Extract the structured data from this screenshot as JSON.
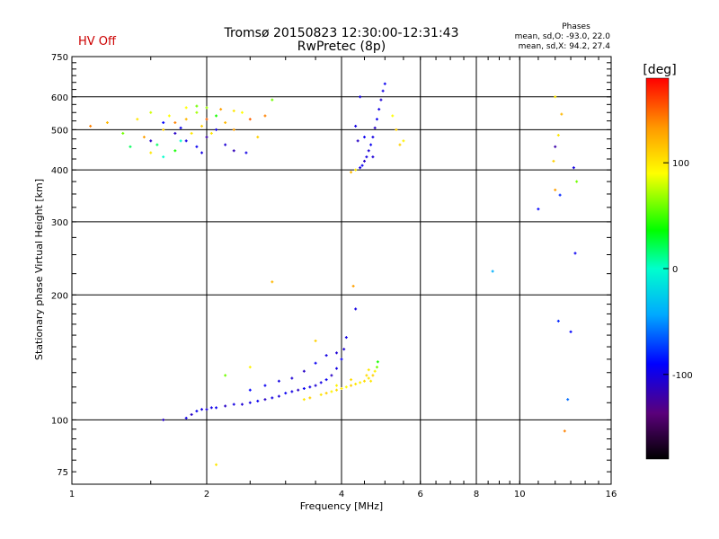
{
  "header": {
    "title_line1": "Tromsø 20150823 12:30:00-12:31:43",
    "title_line2": "RwPretec (8p)",
    "status": "HV Off",
    "status_color": "#cc0000",
    "stats_title": "Phases",
    "stats_line1": "mean, sd,O: -93.0, 22.0",
    "stats_line2": "mean, sd,X:  94.2, 27.4"
  },
  "chart_data": {
    "type": "scatter",
    "title": "Tromsø 20150823 12:30:00-12:31:43",
    "subtitle": "RwPretec (8p)",
    "xlabel": "Frequency [MHz]",
    "ylabel": "Stationary phase Virtual Height [km]",
    "xscale": "log",
    "yscale": "log",
    "xlim": [
      1,
      16
    ],
    "ylim": [
      70,
      750
    ],
    "x_ticks": [
      1,
      2,
      4,
      6,
      8,
      10,
      16
    ],
    "x_tick_labels": [
      "1",
      "2",
      "4",
      "6",
      "8",
      "10",
      "16"
    ],
    "y_ticks": [
      75,
      100,
      200,
      300,
      400,
      500,
      600,
      750
    ],
    "y_tick_labels": [
      "75",
      "100",
      "200",
      "300",
      "400",
      "500",
      "600",
      "750"
    ],
    "x_grid": [
      2,
      4,
      6,
      8,
      10
    ],
    "y_grid": [
      100,
      200,
      300,
      400,
      500,
      600
    ],
    "grid": true,
    "colorbar": {
      "label": "[deg]",
      "range": [
        -180,
        180
      ],
      "ticks": [
        100,
        0,
        -100
      ],
      "tick_labels": [
        "100",
        "0",
        "-100"
      ]
    },
    "series": [
      {
        "mode": "O",
        "points": [
          [
            1.8,
            101
          ],
          [
            1.85,
            103
          ],
          [
            1.9,
            105
          ],
          [
            1.95,
            106
          ],
          [
            2.0,
            106
          ],
          [
            2.05,
            107
          ],
          [
            2.1,
            107
          ],
          [
            2.2,
            108
          ],
          [
            2.3,
            109
          ],
          [
            2.4,
            109
          ],
          [
            2.5,
            110
          ],
          [
            2.6,
            111
          ],
          [
            2.7,
            112
          ],
          [
            2.8,
            113
          ],
          [
            2.9,
            114
          ],
          [
            3.0,
            116
          ],
          [
            3.1,
            117
          ],
          [
            3.2,
            118
          ],
          [
            3.3,
            119
          ],
          [
            3.4,
            120
          ],
          [
            3.5,
            121
          ],
          [
            3.6,
            123
          ],
          [
            3.7,
            125
          ],
          [
            3.8,
            128
          ],
          [
            3.9,
            133
          ],
          [
            4.0,
            140
          ],
          [
            4.05,
            148
          ],
          [
            4.1,
            158
          ],
          [
            2.5,
            118
          ],
          [
            2.7,
            121
          ],
          [
            2.9,
            124
          ],
          [
            3.1,
            126
          ],
          [
            3.3,
            131
          ],
          [
            3.5,
            137
          ],
          [
            3.7,
            143
          ],
          [
            3.9,
            145
          ],
          [
            4.3,
            185
          ],
          [
            1.6,
            100
          ],
          [
            8.7,
            228
          ],
          [
            12.2,
            173
          ],
          [
            13.0,
            163
          ],
          [
            12.8,
            112
          ],
          [
            4.4,
            405
          ],
          [
            4.45,
            410
          ],
          [
            4.5,
            420
          ],
          [
            4.55,
            430
          ],
          [
            4.6,
            445
          ],
          [
            4.65,
            460
          ],
          [
            4.7,
            480
          ],
          [
            4.75,
            505
          ],
          [
            4.8,
            530
          ],
          [
            4.85,
            560
          ],
          [
            4.9,
            590
          ],
          [
            4.95,
            620
          ],
          [
            5.0,
            645
          ],
          [
            4.35,
            470
          ],
          [
            4.3,
            510
          ],
          [
            4.5,
            480
          ],
          [
            4.7,
            430
          ],
          [
            4.4,
            600
          ],
          [
            12.0,
            455
          ],
          [
            12.3,
            348
          ],
          [
            11.0,
            322
          ],
          [
            13.2,
            405
          ],
          [
            13.3,
            252
          ],
          [
            1.7,
            490
          ],
          [
            1.8,
            470
          ],
          [
            1.9,
            455
          ],
          [
            2.0,
            480
          ],
          [
            2.1,
            500
          ],
          [
            2.2,
            460
          ],
          [
            1.6,
            520
          ],
          [
            1.5,
            470
          ],
          [
            1.75,
            505
          ],
          [
            1.95,
            440
          ],
          [
            2.3,
            445
          ],
          [
            2.45,
            440
          ]
        ],
        "phases": [
          -100,
          -110,
          -95,
          -100,
          -105,
          -100,
          -95,
          -110,
          -100,
          -105,
          -100,
          -95,
          -110,
          -100,
          -105,
          -95,
          -100,
          -110,
          -95,
          -100,
          -105,
          -100,
          -95,
          -110,
          -100,
          -95,
          -105,
          -100,
          -90,
          -95,
          -100,
          -105,
          -110,
          -95,
          -100,
          -105,
          -100,
          -110,
          -40,
          -80,
          -90,
          -60,
          -100,
          -95,
          -110,
          -100,
          -105,
          -95,
          -100,
          -110,
          -95,
          -100,
          -105,
          -100,
          -95,
          -110,
          -100,
          -95,
          -105,
          -100,
          -120,
          -80,
          -90,
          -100,
          -95,
          -110,
          -100,
          -95,
          -120,
          -100,
          -105,
          -90,
          -110,
          -95,
          -100,
          -115,
          -100
        ]
      },
      {
        "mode": "X",
        "points": [
          [
            3.6,
            115
          ],
          [
            3.7,
            116
          ],
          [
            3.8,
            117
          ],
          [
            3.9,
            118
          ],
          [
            4.0,
            119
          ],
          [
            4.1,
            120
          ],
          [
            4.2,
            121
          ],
          [
            4.3,
            122
          ],
          [
            4.4,
            123
          ],
          [
            4.5,
            124
          ],
          [
            4.6,
            126
          ],
          [
            4.7,
            128
          ],
          [
            4.75,
            131
          ],
          [
            4.8,
            134
          ],
          [
            4.82,
            138
          ],
          [
            3.4,
            113
          ],
          [
            3.3,
            112
          ],
          [
            3.9,
            121
          ],
          [
            4.2,
            125
          ],
          [
            4.6,
            132
          ],
          [
            2.8,
            215
          ],
          [
            4.25,
            210
          ],
          [
            2.2,
            128
          ],
          [
            2.1,
            78
          ],
          [
            2.5,
            134
          ],
          [
            3.5,
            155
          ],
          [
            4.55,
            128
          ],
          [
            4.65,
            124
          ],
          [
            1.1,
            510
          ],
          [
            1.2,
            520
          ],
          [
            1.3,
            490
          ],
          [
            1.4,
            530
          ],
          [
            1.45,
            480
          ],
          [
            1.5,
            550
          ],
          [
            1.55,
            460
          ],
          [
            1.6,
            500
          ],
          [
            1.65,
            540
          ],
          [
            1.7,
            520
          ],
          [
            1.75,
            470
          ],
          [
            1.8,
            530
          ],
          [
            1.85,
            490
          ],
          [
            1.9,
            550
          ],
          [
            1.95,
            510
          ],
          [
            2.0,
            530
          ],
          [
            2.05,
            490
          ],
          [
            2.1,
            540
          ],
          [
            2.2,
            520
          ],
          [
            2.3,
            500
          ],
          [
            2.4,
            550
          ],
          [
            2.5,
            530
          ],
          [
            2.6,
            480
          ],
          [
            2.7,
            540
          ],
          [
            2.8,
            590
          ],
          [
            1.35,
            455
          ],
          [
            1.5,
            440
          ],
          [
            1.6,
            430
          ],
          [
            1.7,
            445
          ],
          [
            1.8,
            565
          ],
          [
            1.9,
            570
          ],
          [
            2.0,
            565
          ],
          [
            2.15,
            560
          ],
          [
            2.3,
            555
          ],
          [
            4.2,
            395
          ],
          [
            4.3,
            400
          ],
          [
            5.4,
            460
          ],
          [
            5.5,
            470
          ],
          [
            5.2,
            540
          ],
          [
            5.3,
            500
          ],
          [
            12.0,
            600
          ],
          [
            12.4,
            545
          ],
          [
            12.2,
            485
          ],
          [
            11.9,
            420
          ],
          [
            12.0,
            358
          ],
          [
            13.4,
            375
          ],
          [
            12.6,
            94
          ]
        ],
        "phases": [
          100,
          110,
          95,
          105,
          100,
          90,
          110,
          100,
          95,
          105,
          100,
          110,
          95,
          60,
          40,
          110,
          100,
          95,
          105,
          100,
          120,
          130,
          60,
          100,
          95,
          110,
          105,
          100,
          140,
          120,
          60,
          100,
          130,
          80,
          20,
          110,
          90,
          140,
          0,
          120,
          100,
          70,
          110,
          150,
          100,
          40,
          120,
          130,
          90,
          150,
          110,
          140,
          60,
          20,
          100,
          0,
          40,
          90,
          60,
          70,
          130,
          100,
          120,
          100,
          110,
          95,
          90,
          110,
          100,
          120,
          100,
          110,
          130,
          60,
          140
        ]
      }
    ]
  }
}
